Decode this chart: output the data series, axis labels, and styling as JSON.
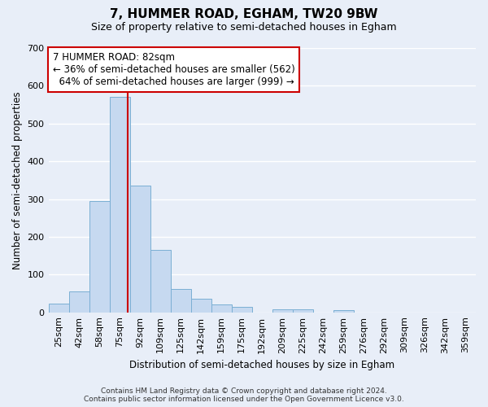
{
  "title": "7, HUMMER ROAD, EGHAM, TW20 9BW",
  "subtitle": "Size of property relative to semi-detached houses in Egham",
  "xlabel": "Distribution of semi-detached houses by size in Egham",
  "ylabel": "Number of semi-detached properties",
  "bar_color": "#c6d9f0",
  "bar_edge_color": "#7bafd4",
  "background_color": "#e8eef8",
  "grid_color": "#ffffff",
  "categories": [
    "25sqm",
    "42sqm",
    "58sqm",
    "75sqm",
    "92sqm",
    "109sqm",
    "125sqm",
    "142sqm",
    "159sqm",
    "175sqm",
    "192sqm",
    "209sqm",
    "225sqm",
    "242sqm",
    "259sqm",
    "276sqm",
    "292sqm",
    "309sqm",
    "326sqm",
    "342sqm",
    "359sqm"
  ],
  "values": [
    22,
    55,
    295,
    570,
    335,
    165,
    62,
    37,
    20,
    14,
    0,
    8,
    8,
    0,
    5,
    0,
    0,
    0,
    0,
    0,
    0
  ],
  "ylim": [
    0,
    700
  ],
  "yticks": [
    0,
    100,
    200,
    300,
    400,
    500,
    600,
    700
  ],
  "red_line_color": "#cc0000",
  "property_label": "7 HUMMER ROAD: 82sqm",
  "annotation_line2": "← 36% of semi-detached houses are smaller (562)",
  "annotation_line3": "  64% of semi-detached houses are larger (999) →",
  "box_edge_color": "#cc0000",
  "footer_line1": "Contains HM Land Registry data © Crown copyright and database right 2024.",
  "footer_line2": "Contains public sector information licensed under the Open Government Licence v3.0.",
  "title_fontsize": 11,
  "subtitle_fontsize": 9,
  "axis_fontsize": 8.5,
  "tick_fontsize": 8,
  "annotation_fontsize": 8.5,
  "footer_fontsize": 6.5
}
